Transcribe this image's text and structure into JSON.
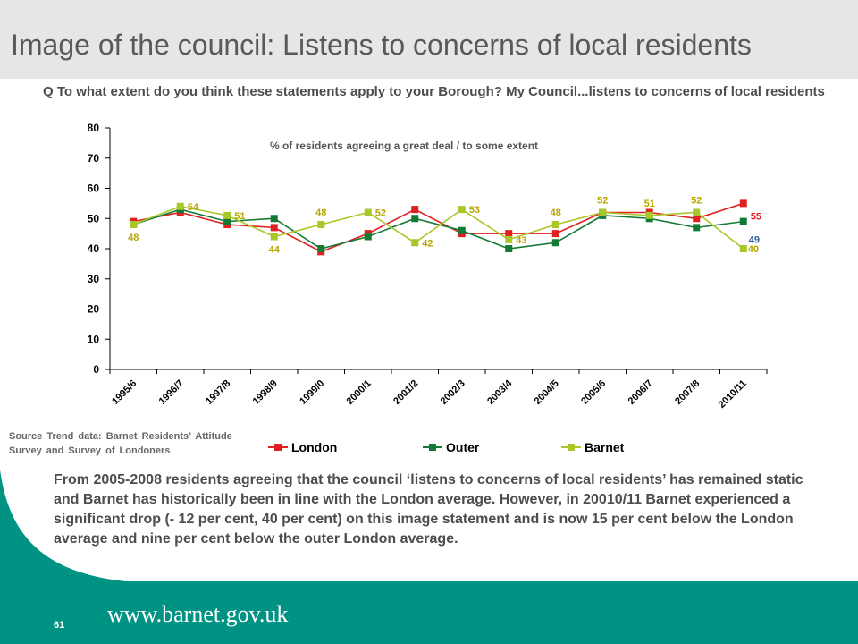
{
  "slide": {
    "title": "Image of the council: Listens to concerns of local residents",
    "question": "Q  To what extent do you think these statements apply to your Borough? My Council...listens to concerns of local residents",
    "source": "Source Trend data:  Barnet  Residents’ Attitude  Survey and Survey of Londoners",
    "body": "From 2005-2008 residents agreeing that the council ‘listens to concerns of local residents’ has remained static and Barnet has historically been in line with the London average.  However, in 20010/11 Barnet experienced a significant drop (- 12 per cent, 40 per cent) on this image statement and is now 15 per cent below the London average and nine per cent below the outer London average.",
    "page_number": "61",
    "url": "www.barnet.gov.uk"
  },
  "colors": {
    "london": "#e02020",
    "outer": "#127a35",
    "barnet": "#a8c82a",
    "barnet_label": "#b9a600",
    "london_label": "#e02020",
    "outer_label": "#2f5d9b",
    "footer": "#009383"
  },
  "chart_data": {
    "type": "line",
    "subtitle": "% of residents agreeing a great deal / to some extent",
    "categories": [
      "1995/6",
      "1996/7",
      "1997/8",
      "1998/9",
      "1999/0",
      "2000/1",
      "2001/2",
      "2002/3",
      "2003/4",
      "2004/5",
      "2005/6",
      "2006/7",
      "2007/8",
      "2010/11"
    ],
    "ylim": [
      0,
      80
    ],
    "yticks": [
      0,
      10,
      20,
      30,
      40,
      50,
      60,
      70,
      80
    ],
    "legend_position": "bottom",
    "series": [
      {
        "name": "London",
        "key": "london",
        "values": [
          49,
          52,
          48,
          47,
          39,
          45,
          53,
          45,
          45,
          45,
          52,
          52,
          50,
          55
        ]
      },
      {
        "name": "Outer",
        "key": "outer",
        "values": [
          48,
          53,
          49,
          50,
          40,
          44,
          50,
          46,
          40,
          42,
          51,
          50,
          47,
          49
        ]
      },
      {
        "name": "Barnet",
        "key": "barnet",
        "values": [
          48,
          54,
          51,
          44,
          48,
          52,
          42,
          53,
          43,
          48,
          52,
          51,
          52,
          40
        ]
      }
    ],
    "data_labels": [
      {
        "series": "barnet",
        "index": 0,
        "text": "48"
      },
      {
        "series": "barnet",
        "index": 1,
        "text": "54"
      },
      {
        "series": "barnet",
        "index": 2,
        "text": "51"
      },
      {
        "series": "barnet",
        "index": 3,
        "text": "44"
      },
      {
        "series": "barnet",
        "index": 4,
        "text": "48"
      },
      {
        "series": "barnet",
        "index": 5,
        "text": "52"
      },
      {
        "series": "barnet",
        "index": 6,
        "text": "42"
      },
      {
        "series": "barnet",
        "index": 7,
        "text": "53"
      },
      {
        "series": "barnet",
        "index": 8,
        "text": "43"
      },
      {
        "series": "barnet",
        "index": 9,
        "text": "48"
      },
      {
        "series": "barnet",
        "index": 10,
        "text": "52"
      },
      {
        "series": "barnet",
        "index": 11,
        "text": "51"
      },
      {
        "series": "barnet",
        "index": 12,
        "text": "52"
      },
      {
        "series": "barnet",
        "index": 13,
        "text": "40"
      },
      {
        "series": "london",
        "index": 13,
        "text": "55"
      },
      {
        "series": "outer",
        "index": 13,
        "text": "49"
      }
    ]
  }
}
